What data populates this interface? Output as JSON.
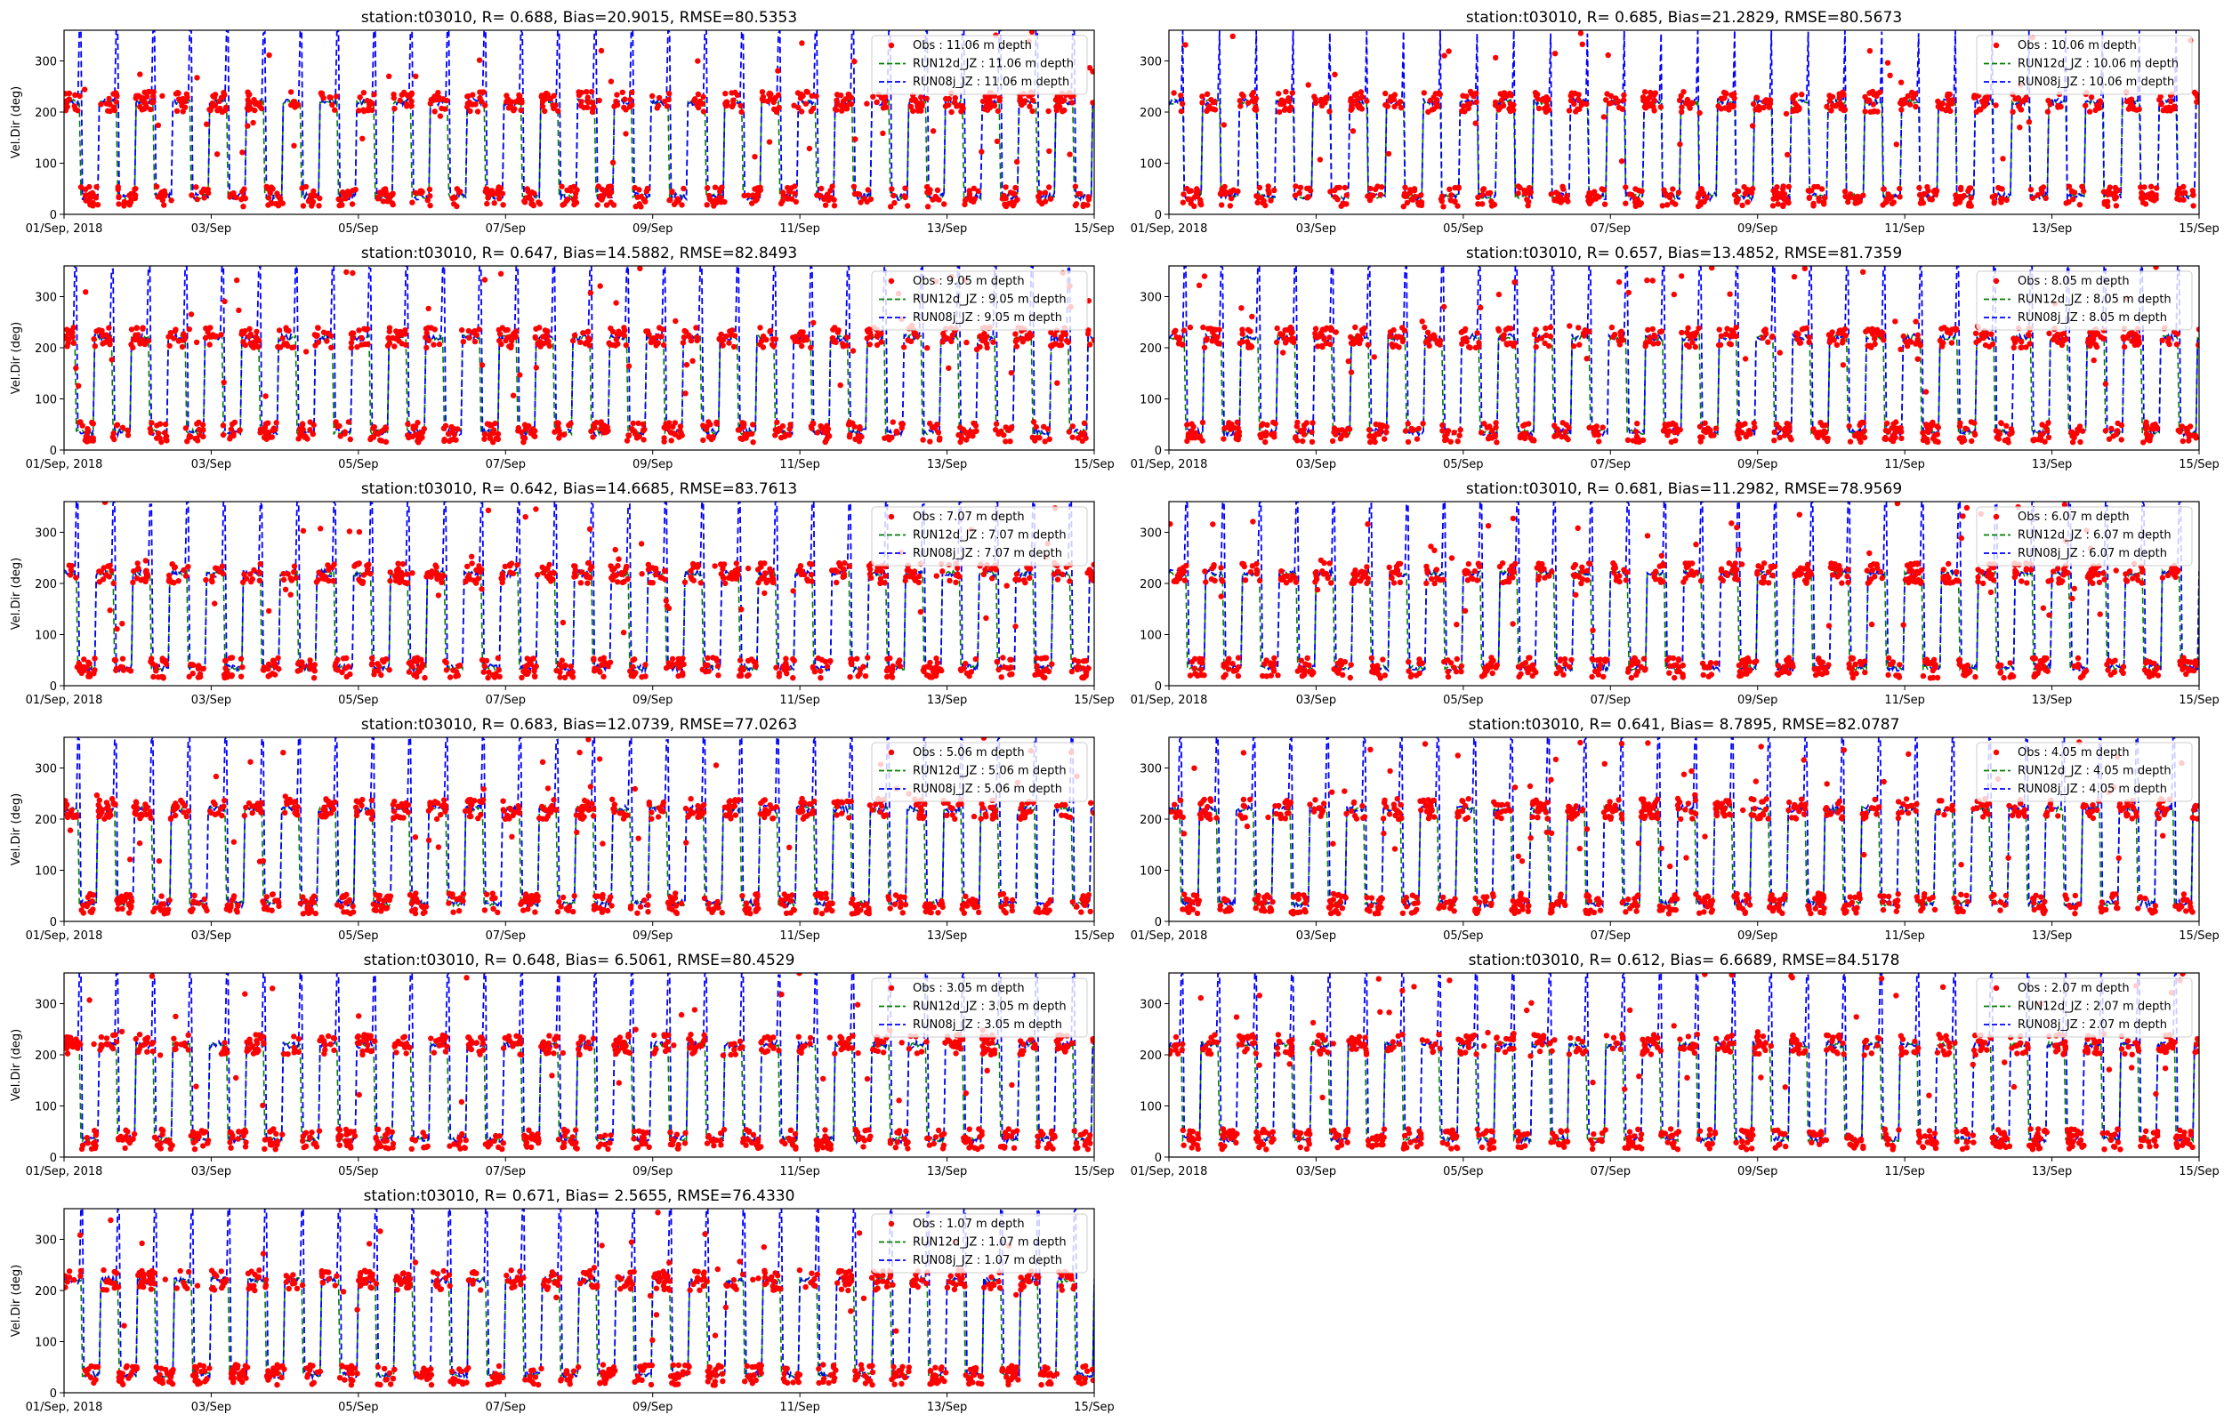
{
  "figure": {
    "colors": {
      "obs": "#ff0000",
      "run12d": "#008000",
      "run08j": "#0000ff",
      "axes": "#000000"
    }
  },
  "chart_data": [
    {
      "type": "line",
      "title": "station:t03010, R= 0.688, Bias=20.9015, RMSE=80.5353",
      "xlabel": "",
      "ylabel": "Vel.Dir (deg)",
      "xlim": [
        "2018-09-01",
        "2018-09-15"
      ],
      "ylim": [
        0,
        360
      ],
      "x_tick_labels": [
        "01/Sep, 2018",
        "03/Sep",
        "05/Sep",
        "07/Sep",
        "09/Sep",
        "11/Sep",
        "13/Sep",
        "15/Sep"
      ],
      "y_tick_labels": [
        "0",
        "100",
        "200",
        "300"
      ],
      "y_ticks": [
        0,
        100,
        200,
        300
      ],
      "legend_position": "upper right",
      "series": [
        {
          "name": "Obs : 11.06 m depth",
          "style": "markers",
          "color": "#ff0000"
        },
        {
          "name": "RUN12d_JZ : 11.06 m depth",
          "style": "dashed",
          "color": "#008000"
        },
        {
          "name": "RUN08j_JZ : 11.06 m depth",
          "style": "dashed",
          "color": "#0000ff"
        }
      ],
      "pattern": {
        "low_value": 35,
        "high_value": 220,
        "transitions_per_day": 4,
        "depth_m": 11.06
      }
    },
    {
      "type": "line",
      "title": "station:t03010, R= 0.685, Bias=21.2829, RMSE=80.5673",
      "xlabel": "",
      "ylabel": "",
      "xlim": [
        "2018-09-01",
        "2018-09-15"
      ],
      "ylim": [
        0,
        360
      ],
      "x_tick_labels": [
        "01/Sep, 2018",
        "03/Sep",
        "05/Sep",
        "07/Sep",
        "09/Sep",
        "11/Sep",
        "13/Sep",
        "15/Sep"
      ],
      "y_tick_labels": [
        "0",
        "100",
        "200",
        "300"
      ],
      "y_ticks": [
        0,
        100,
        200,
        300
      ],
      "legend_position": "upper right",
      "series": [
        {
          "name": "Obs : 10.06 m depth",
          "style": "markers",
          "color": "#ff0000"
        },
        {
          "name": "RUN12d_JZ : 10.06 m depth",
          "style": "dashed",
          "color": "#008000"
        },
        {
          "name": "RUN08j_JZ : 10.06 m depth",
          "style": "dashed",
          "color": "#0000ff"
        }
      ],
      "pattern": {
        "low_value": 35,
        "high_value": 220,
        "transitions_per_day": 4,
        "depth_m": 10.06
      }
    },
    {
      "type": "line",
      "title": "station:t03010, R= 0.647, Bias=14.5882, RMSE=82.8493",
      "xlabel": "",
      "ylabel": "Vel.Dir (deg)",
      "xlim": [
        "2018-09-01",
        "2018-09-15"
      ],
      "ylim": [
        0,
        360
      ],
      "x_tick_labels": [
        "01/Sep, 2018",
        "03/Sep",
        "05/Sep",
        "07/Sep",
        "09/Sep",
        "11/Sep",
        "13/Sep",
        "15/Sep"
      ],
      "y_tick_labels": [
        "0",
        "100",
        "200",
        "300"
      ],
      "y_ticks": [
        0,
        100,
        200,
        300
      ],
      "legend_position": "upper right",
      "series": [
        {
          "name": "Obs : 9.05 m depth",
          "style": "markers",
          "color": "#ff0000"
        },
        {
          "name": "RUN12d_JZ : 9.05 m depth",
          "style": "dashed",
          "color": "#008000"
        },
        {
          "name": "RUN08j_JZ : 9.05 m depth",
          "style": "dashed",
          "color": "#0000ff"
        }
      ],
      "pattern": {
        "low_value": 35,
        "high_value": 220,
        "transitions_per_day": 4,
        "depth_m": 9.05
      }
    },
    {
      "type": "line",
      "title": "station:t03010, R= 0.657, Bias=13.4852, RMSE=81.7359",
      "xlabel": "",
      "ylabel": "",
      "xlim": [
        "2018-09-01",
        "2018-09-15"
      ],
      "ylim": [
        0,
        360
      ],
      "x_tick_labels": [
        "01/Sep, 2018",
        "03/Sep",
        "05/Sep",
        "07/Sep",
        "09/Sep",
        "11/Sep",
        "13/Sep",
        "15/Sep"
      ],
      "y_tick_labels": [
        "0",
        "100",
        "200",
        "300"
      ],
      "y_ticks": [
        0,
        100,
        200,
        300
      ],
      "legend_position": "upper right",
      "series": [
        {
          "name": "Obs : 8.05 m depth",
          "style": "markers",
          "color": "#ff0000"
        },
        {
          "name": "RUN12d_JZ : 8.05 m depth",
          "style": "dashed",
          "color": "#008000"
        },
        {
          "name": "RUN08j_JZ : 8.05 m depth",
          "style": "dashed",
          "color": "#0000ff"
        }
      ],
      "pattern": {
        "low_value": 35,
        "high_value": 220,
        "transitions_per_day": 4,
        "depth_m": 8.05
      }
    },
    {
      "type": "line",
      "title": "station:t03010, R= 0.642, Bias=14.6685, RMSE=83.7613",
      "xlabel": "",
      "ylabel": "Vel.Dir (deg)",
      "xlim": [
        "2018-09-01",
        "2018-09-15"
      ],
      "ylim": [
        0,
        360
      ],
      "x_tick_labels": [
        "01/Sep, 2018",
        "03/Sep",
        "05/Sep",
        "07/Sep",
        "09/Sep",
        "11/Sep",
        "13/Sep",
        "15/Sep"
      ],
      "y_tick_labels": [
        "0",
        "100",
        "200",
        "300"
      ],
      "y_ticks": [
        0,
        100,
        200,
        300
      ],
      "legend_position": "upper right",
      "series": [
        {
          "name": "Obs : 7.07 m depth",
          "style": "markers",
          "color": "#ff0000"
        },
        {
          "name": "RUN12d_JZ : 7.07 m depth",
          "style": "dashed",
          "color": "#008000"
        },
        {
          "name": "RUN08j_JZ : 7.07 m depth",
          "style": "dashed",
          "color": "#0000ff"
        }
      ],
      "pattern": {
        "low_value": 35,
        "high_value": 220,
        "transitions_per_day": 4,
        "depth_m": 7.07
      }
    },
    {
      "type": "line",
      "title": "station:t03010, R= 0.681, Bias=11.2982, RMSE=78.9569",
      "xlabel": "",
      "ylabel": "",
      "xlim": [
        "2018-09-01",
        "2018-09-15"
      ],
      "ylim": [
        0,
        360
      ],
      "x_tick_labels": [
        "01/Sep, 2018",
        "03/Sep",
        "05/Sep",
        "07/Sep",
        "09/Sep",
        "11/Sep",
        "13/Sep",
        "15/Sep"
      ],
      "y_tick_labels": [
        "0",
        "100",
        "200",
        "300"
      ],
      "y_ticks": [
        0,
        100,
        200,
        300
      ],
      "legend_position": "upper right",
      "series": [
        {
          "name": "Obs : 6.07 m depth",
          "style": "markers",
          "color": "#ff0000"
        },
        {
          "name": "RUN12d_JZ : 6.07 m depth",
          "style": "dashed",
          "color": "#008000"
        },
        {
          "name": "RUN08j_JZ : 6.07 m depth",
          "style": "dashed",
          "color": "#0000ff"
        }
      ],
      "pattern": {
        "low_value": 35,
        "high_value": 220,
        "transitions_per_day": 4,
        "depth_m": 6.07
      }
    },
    {
      "type": "line",
      "title": "station:t03010, R= 0.683, Bias=12.0739, RMSE=77.0263",
      "xlabel": "",
      "ylabel": "Vel.Dir (deg)",
      "xlim": [
        "2018-09-01",
        "2018-09-15"
      ],
      "ylim": [
        0,
        360
      ],
      "x_tick_labels": [
        "01/Sep, 2018",
        "03/Sep",
        "05/Sep",
        "07/Sep",
        "09/Sep",
        "11/Sep",
        "13/Sep",
        "15/Sep"
      ],
      "y_tick_labels": [
        "0",
        "100",
        "200",
        "300"
      ],
      "y_ticks": [
        0,
        100,
        200,
        300
      ],
      "legend_position": "upper right",
      "series": [
        {
          "name": "Obs : 5.06 m depth",
          "style": "markers",
          "color": "#ff0000"
        },
        {
          "name": "RUN12d_JZ : 5.06 m depth",
          "style": "dashed",
          "color": "#008000"
        },
        {
          "name": "RUN08j_JZ : 5.06 m depth",
          "style": "dashed",
          "color": "#0000ff"
        }
      ],
      "pattern": {
        "low_value": 35,
        "high_value": 220,
        "transitions_per_day": 4,
        "depth_m": 5.06
      }
    },
    {
      "type": "line",
      "title": "station:t03010, R= 0.641, Bias= 8.7895, RMSE=82.0787",
      "xlabel": "",
      "ylabel": "",
      "xlim": [
        "2018-09-01",
        "2018-09-15"
      ],
      "ylim": [
        0,
        360
      ],
      "x_tick_labels": [
        "01/Sep, 2018",
        "03/Sep",
        "05/Sep",
        "07/Sep",
        "09/Sep",
        "11/Sep",
        "13/Sep",
        "15/Sep"
      ],
      "y_tick_labels": [
        "0",
        "100",
        "200",
        "300"
      ],
      "y_ticks": [
        0,
        100,
        200,
        300
      ],
      "legend_position": "upper right",
      "series": [
        {
          "name": "Obs : 4.05 m depth",
          "style": "markers",
          "color": "#ff0000"
        },
        {
          "name": "RUN12d_JZ : 4.05 m depth",
          "style": "dashed",
          "color": "#008000"
        },
        {
          "name": "RUN08j_JZ : 4.05 m depth",
          "style": "dashed",
          "color": "#0000ff"
        }
      ],
      "pattern": {
        "low_value": 35,
        "high_value": 220,
        "transitions_per_day": 4,
        "depth_m": 4.05
      }
    },
    {
      "type": "line",
      "title": "station:t03010, R= 0.648, Bias= 6.5061, RMSE=80.4529",
      "xlabel": "",
      "ylabel": "Vel.Dir (deg)",
      "xlim": [
        "2018-09-01",
        "2018-09-15"
      ],
      "ylim": [
        0,
        360
      ],
      "x_tick_labels": [
        "01/Sep, 2018",
        "03/Sep",
        "05/Sep",
        "07/Sep",
        "09/Sep",
        "11/Sep",
        "13/Sep",
        "15/Sep"
      ],
      "y_tick_labels": [
        "0",
        "100",
        "200",
        "300"
      ],
      "y_ticks": [
        0,
        100,
        200,
        300
      ],
      "legend_position": "upper right",
      "series": [
        {
          "name": "Obs : 3.05 m depth",
          "style": "markers",
          "color": "#ff0000"
        },
        {
          "name": "RUN12d_JZ : 3.05 m depth",
          "style": "dashed",
          "color": "#008000"
        },
        {
          "name": "RUN08j_JZ : 3.05 m depth",
          "style": "dashed",
          "color": "#0000ff"
        }
      ],
      "pattern": {
        "low_value": 35,
        "high_value": 220,
        "transitions_per_day": 4,
        "depth_m": 3.05
      }
    },
    {
      "type": "line",
      "title": "station:t03010, R= 0.612, Bias= 6.6689, RMSE=84.5178",
      "xlabel": "",
      "ylabel": "",
      "xlim": [
        "2018-09-01",
        "2018-09-15"
      ],
      "ylim": [
        0,
        360
      ],
      "x_tick_labels": [
        "01/Sep, 2018",
        "03/Sep",
        "05/Sep",
        "07/Sep",
        "09/Sep",
        "11/Sep",
        "13/Sep",
        "15/Sep"
      ],
      "y_tick_labels": [
        "0",
        "100",
        "200",
        "300"
      ],
      "y_ticks": [
        0,
        100,
        200,
        300
      ],
      "legend_position": "upper right",
      "series": [
        {
          "name": "Obs : 2.07 m depth",
          "style": "markers",
          "color": "#ff0000"
        },
        {
          "name": "RUN12d_JZ : 2.07 m depth",
          "style": "dashed",
          "color": "#008000"
        },
        {
          "name": "RUN08j_JZ : 2.07 m depth",
          "style": "dashed",
          "color": "#0000ff"
        }
      ],
      "pattern": {
        "low_value": 35,
        "high_value": 220,
        "transitions_per_day": 4,
        "depth_m": 2.07
      }
    },
    {
      "type": "line",
      "title": "station:t03010, R= 0.671, Bias= 2.5655, RMSE=76.4330",
      "xlabel": "",
      "ylabel": "Vel.Dir (deg)",
      "xlim": [
        "2018-09-01",
        "2018-09-15"
      ],
      "ylim": [
        0,
        360
      ],
      "x_tick_labels": [
        "01/Sep, 2018",
        "03/Sep",
        "05/Sep",
        "07/Sep",
        "09/Sep",
        "11/Sep",
        "13/Sep",
        "15/Sep"
      ],
      "y_tick_labels": [
        "0",
        "100",
        "200",
        "300"
      ],
      "y_ticks": [
        0,
        100,
        200,
        300
      ],
      "legend_position": "upper right",
      "series": [
        {
          "name": "Obs : 1.07 m depth",
          "style": "markers",
          "color": "#ff0000"
        },
        {
          "name": "RUN12d_JZ : 1.07 m depth",
          "style": "dashed",
          "color": "#008000"
        },
        {
          "name": "RUN08j_JZ : 1.07 m depth",
          "style": "dashed",
          "color": "#0000ff"
        }
      ],
      "pattern": {
        "low_value": 35,
        "high_value": 220,
        "transitions_per_day": 4,
        "depth_m": 1.07
      }
    }
  ]
}
